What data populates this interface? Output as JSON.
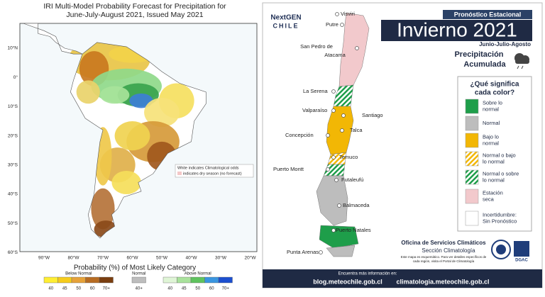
{
  "iri": {
    "title": [
      "IRI Multi-Model Probability Forecast for Precipitation for",
      "June-July-August 2021, Issued May 2021"
    ],
    "lat_labels": [
      "10°N",
      "0°",
      "10°S",
      "20°S",
      "30°S",
      "40°S",
      "50°S",
      "60°S"
    ],
    "lon_labels": [
      "90°W",
      "80°W",
      "70°W",
      "60°W",
      "50°W",
      "40°W",
      "30°W",
      "20°W"
    ],
    "note": [
      "White indicates Climatological odds",
      "indicates dry season (no forecast)"
    ],
    "colorbar": {
      "title": "Probability (%) of Most Likely Category",
      "below": {
        "label": "Below Normal",
        "ticks": [
          "40",
          "45",
          "50",
          "60",
          "70+"
        ]
      },
      "normal": {
        "label": "Normal",
        "ticks": [
          "40+"
        ]
      },
      "above": {
        "label": "Above Normal",
        "ticks": [
          "40",
          "45",
          "50",
          "60",
          "70+"
        ]
      }
    }
  },
  "chile": {
    "logo": [
      "NextGEN",
      "CHILE"
    ],
    "kicker": "Pronóstico Estacional",
    "title": "Invierno 2021",
    "season": "Junio-Julio-Agosto",
    "variable": [
      "Precipitación",
      "Acumulada"
    ],
    "legend_title": [
      "¿Qué significa",
      "cada color?"
    ],
    "legend": [
      [
        "Sobre lo",
        "normal"
      ],
      [
        "Normal"
      ],
      [
        "Bajo lo",
        "normal"
      ],
      [
        "Normal o bajo",
        "lo normal"
      ],
      [
        "Normal o sobre",
        "lo normal"
      ],
      [
        "Estación",
        "seca"
      ],
      [
        "Incertidumbre:",
        "Sin Pronóstico"
      ]
    ],
    "cities": [
      [
        "Visviri"
      ],
      [
        "Putre"
      ],
      [
        "San Pedro de",
        "Atacama"
      ],
      [
        "La Serena"
      ],
      [
        "Valparaíso"
      ],
      [
        "Santiago"
      ],
      [
        "Concepción"
      ],
      [
        "Talca"
      ],
      [
        "Temuco"
      ],
      [
        "Puerto Montt"
      ],
      [
        "Futaleufú"
      ],
      [
        "Balmaceda"
      ],
      [
        "Puerto Natales"
      ],
      [
        "Punta Arenas"
      ]
    ],
    "office": [
      "Oficina de Servicios Climáticos",
      "Sección Climatología"
    ],
    "disclaimer": [
      "Este mapa es esquemático. Para ver detalles específicos de",
      "cada región, visita el Portal de Climatología"
    ],
    "agency": "DGAC",
    "footer": {
      "lead": "Encuentra más información en:",
      "links": [
        "blog.meteochile.gob.cl",
        "climatologia.meteochile.gob.cl"
      ]
    }
  }
}
